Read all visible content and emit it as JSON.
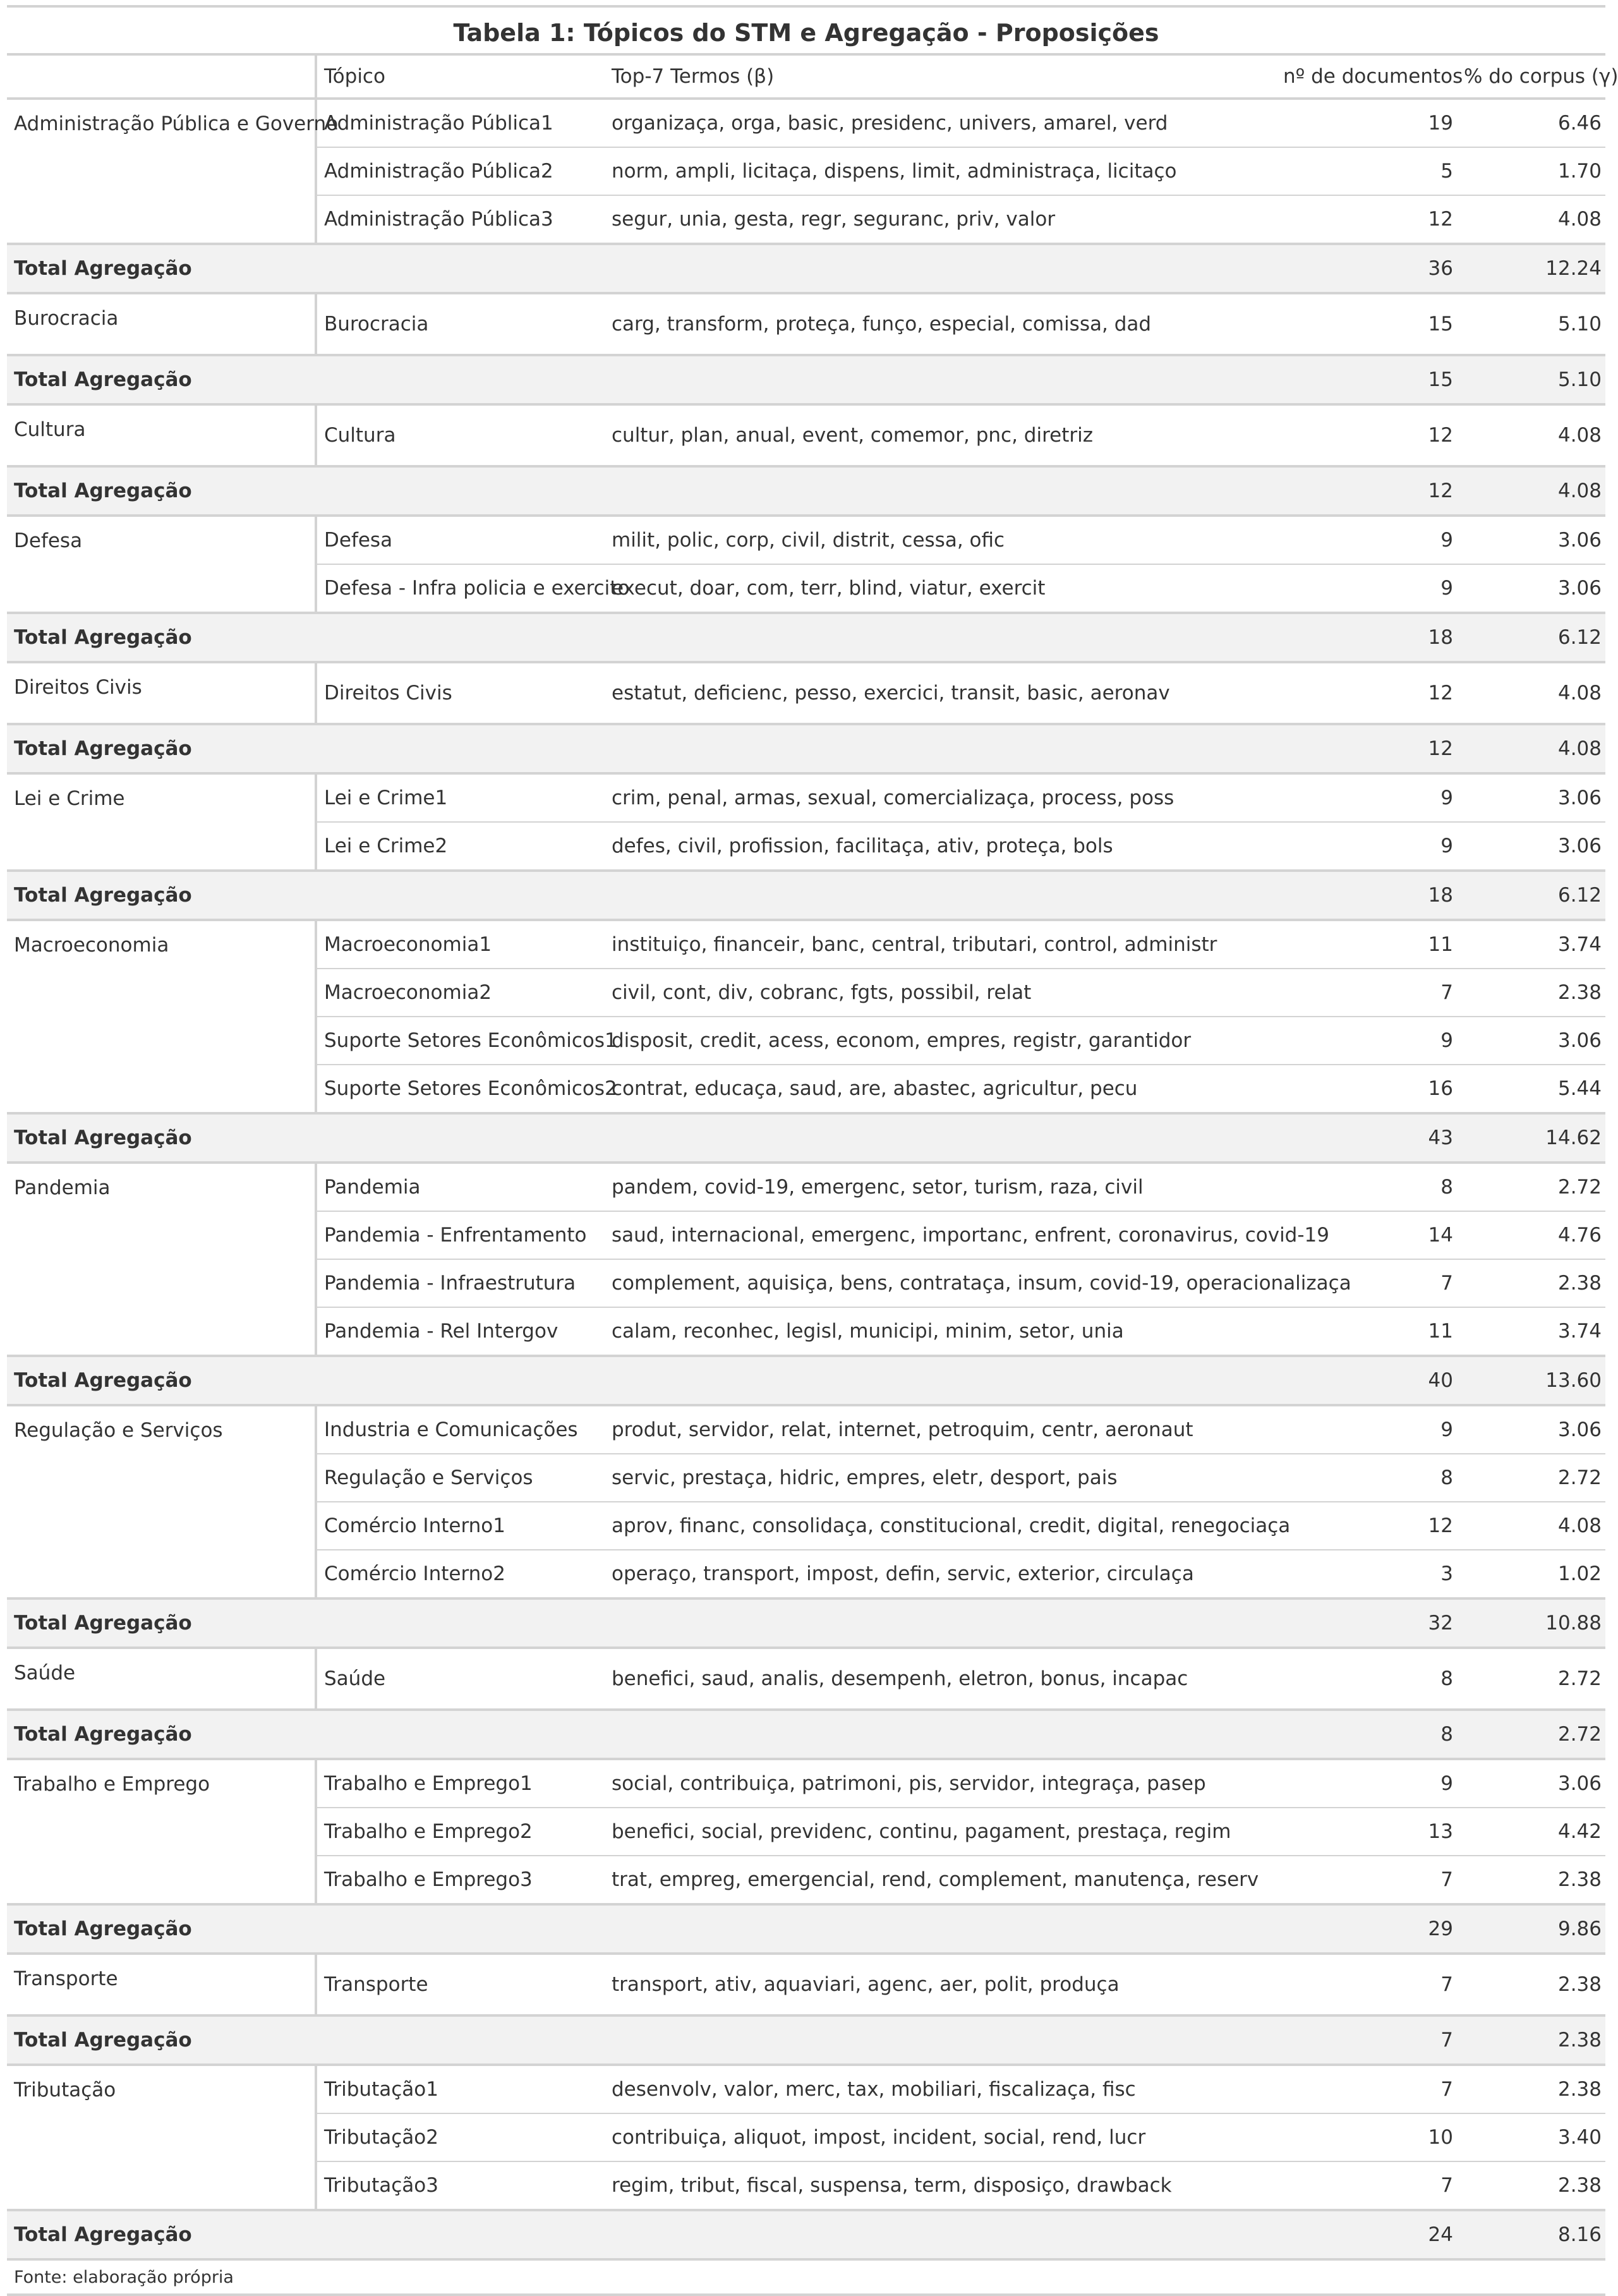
{
  "title": "Tabela 1: Tópicos do STM e Agregação - Proposições",
  "headers": {
    "stub": "",
    "topic": "Tópico",
    "terms": "Top-7 Termos (β)",
    "docs": "nº de documentos",
    "pct": "% do corpus (γ)"
  },
  "total_label": "Total Agregação",
  "groups": [
    {
      "name": "Administração Pública e Governo",
      "rows": [
        {
          "topic": "Administração Pública1",
          "terms": "organizaça, orga, basic, presidenc, univers, amarel, verd",
          "docs": "19",
          "pct": "6.46"
        },
        {
          "topic": "Administração Pública2",
          "terms": "norm, ampli, licitaça, dispens, limit, administraça, licitaço",
          "docs": "5",
          "pct": "1.70"
        },
        {
          "topic": "Administração Pública3",
          "terms": "segur, unia, gesta, regr, seguranc, priv, valor",
          "docs": "12",
          "pct": "4.08"
        }
      ],
      "total_docs": "36",
      "total_pct": "12.24"
    },
    {
      "name": "Burocracia",
      "rows": [
        {
          "topic": "Burocracia",
          "terms": "carg, transform, proteça, funço, especial, comissa, dad",
          "docs": "15",
          "pct": "5.10"
        }
      ],
      "total_docs": "15",
      "total_pct": "5.10"
    },
    {
      "name": "Cultura",
      "rows": [
        {
          "topic": "Cultura",
          "terms": "cultur, plan, anual, event, comemor, pnc, diretriz",
          "docs": "12",
          "pct": "4.08"
        }
      ],
      "total_docs": "12",
      "total_pct": "4.08"
    },
    {
      "name": "Defesa",
      "rows": [
        {
          "topic": "Defesa",
          "terms": "milit, polic, corp, civil, distrit, cessa, ofic",
          "docs": "9",
          "pct": "3.06"
        },
        {
          "topic": "Defesa - Infra policia e exercito",
          "terms": "execut, doar, com, terr, blind, viatur, exercit",
          "docs": "9",
          "pct": "3.06"
        }
      ],
      "total_docs": "18",
      "total_pct": "6.12"
    },
    {
      "name": "Direitos Civis",
      "rows": [
        {
          "topic": "Direitos Civis",
          "terms": "estatut, deficienc, pesso, exercici, transit, basic, aeronav",
          "docs": "12",
          "pct": "4.08"
        }
      ],
      "total_docs": "12",
      "total_pct": "4.08"
    },
    {
      "name": "Lei e Crime",
      "rows": [
        {
          "topic": "Lei e Crime1",
          "terms": "crim, penal, armas, sexual, comercializaça, process, poss",
          "docs": "9",
          "pct": "3.06"
        },
        {
          "topic": "Lei e Crime2",
          "terms": "defes, civil, profission, facilitaça, ativ, proteça, bols",
          "docs": "9",
          "pct": "3.06"
        }
      ],
      "total_docs": "18",
      "total_pct": "6.12"
    },
    {
      "name": "Macroeconomia",
      "rows": [
        {
          "topic": "Macroeconomia1",
          "terms": "instituiço, financeir, banc, central, tributari, control, administr",
          "docs": "11",
          "pct": "3.74"
        },
        {
          "topic": "Macroeconomia2",
          "terms": "civil, cont, div, cobranc, fgts, possibil, relat",
          "docs": "7",
          "pct": "2.38"
        },
        {
          "topic": "Suporte Setores Econômicos1",
          "terms": "disposit, credit, acess, econom, empres, registr, garantidor",
          "docs": "9",
          "pct": "3.06"
        },
        {
          "topic": "Suporte Setores Econômicos2",
          "terms": "contrat, educaça, saud, are, abastec, agricultur, pecu",
          "docs": "16",
          "pct": "5.44"
        }
      ],
      "total_docs": "43",
      "total_pct": "14.62"
    },
    {
      "name": "Pandemia",
      "rows": [
        {
          "topic": "Pandemia",
          "terms": "pandem, covid-19, emergenc, setor, turism, raza, civil",
          "docs": "8",
          "pct": "2.72"
        },
        {
          "topic": "Pandemia - Enfrentamento",
          "terms": "saud, internacional, emergenc, importanc, enfrent, coronavirus, covid-19",
          "docs": "14",
          "pct": "4.76"
        },
        {
          "topic": "Pandemia - Infraestrutura",
          "terms": "complement, aquisiça, bens, contrataça, insum, covid-19, operacionalizaça",
          "docs": "7",
          "pct": "2.38"
        },
        {
          "topic": "Pandemia - Rel Intergov",
          "terms": "calam, reconhec, legisl, municipi, minim, setor, unia",
          "docs": "11",
          "pct": "3.74"
        }
      ],
      "total_docs": "40",
      "total_pct": "13.60"
    },
    {
      "name": "Regulação e Serviços",
      "rows": [
        {
          "topic": "Industria e Comunicações",
          "terms": "produt, servidor, relat, internet, petroquim, centr, aeronaut",
          "docs": "9",
          "pct": "3.06"
        },
        {
          "topic": "Regulação e Serviços",
          "terms": "servic, prestaça, hidric, empres, eletr, desport, pais",
          "docs": "8",
          "pct": "2.72"
        },
        {
          "topic": "Comércio Interno1",
          "terms": "aprov, financ, consolidaça, constitucional, credit, digital, renegociaça",
          "docs": "12",
          "pct": "4.08"
        },
        {
          "topic": "Comércio Interno2",
          "terms": "operaço, transport, impost, defin, servic, exterior, circulaça",
          "docs": "3",
          "pct": "1.02"
        }
      ],
      "total_docs": "32",
      "total_pct": "10.88"
    },
    {
      "name": "Saúde",
      "rows": [
        {
          "topic": "Saúde",
          "terms": "benefici, saud, analis, desempenh, eletron, bonus, incapac",
          "docs": "8",
          "pct": "2.72"
        }
      ],
      "total_docs": "8",
      "total_pct": "2.72"
    },
    {
      "name": "Trabalho e Emprego",
      "rows": [
        {
          "topic": "Trabalho e Emprego1",
          "terms": "social, contribuiça, patrimoni, pis, servidor, integraça, pasep",
          "docs": "9",
          "pct": "3.06"
        },
        {
          "topic": "Trabalho e Emprego2",
          "terms": "benefici, social, previdenc, continu, pagament, prestaça, regim",
          "docs": "13",
          "pct": "4.42"
        },
        {
          "topic": "Trabalho e Emprego3",
          "terms": "trat, empreg, emergencial, rend, complement, manutença, reserv",
          "docs": "7",
          "pct": "2.38"
        }
      ],
      "total_docs": "29",
      "total_pct": "9.86"
    },
    {
      "name": "Transporte",
      "rows": [
        {
          "topic": "Transporte",
          "terms": "transport, ativ, aquaviari, agenc, aer, polit, produça",
          "docs": "7",
          "pct": "2.38"
        }
      ],
      "total_docs": "7",
      "total_pct": "2.38"
    },
    {
      "name": "Tributação",
      "rows": [
        {
          "topic": "Tributação1",
          "terms": "desenvolv, valor, merc, tax, mobiliari, fiscalizaça, fisc",
          "docs": "7",
          "pct": "2.38"
        },
        {
          "topic": "Tributação2",
          "terms": "contribuiça, aliquot, impost, incident, social, rend, lucr",
          "docs": "10",
          "pct": "3.40"
        },
        {
          "topic": "Tributação3",
          "terms": "regim, tribut, fiscal, suspensa, term, disposiço, drawback",
          "docs": "7",
          "pct": "2.38"
        }
      ],
      "total_docs": "24",
      "total_pct": "8.16"
    }
  ],
  "footnote": "Fonte: elaboração própria"
}
